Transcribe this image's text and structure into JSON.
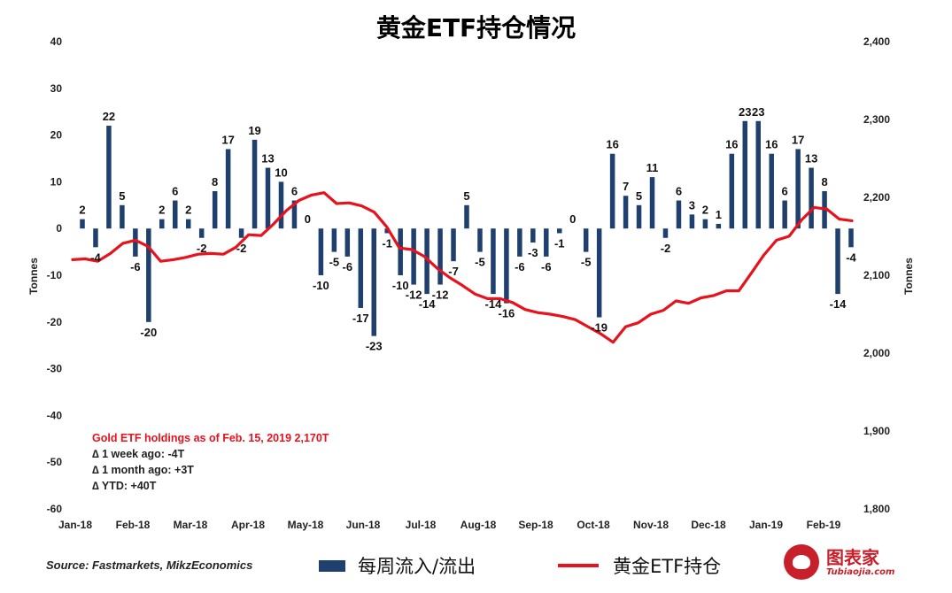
{
  "title": "黄金ETF持仓情况",
  "chart_data": {
    "type": "bar+line",
    "title": "黄金ETF持仓情况",
    "left_axis": {
      "label": "Tonnes",
      "ylim": [
        -60,
        40
      ],
      "ticks": [
        "40",
        "30",
        "20",
        "10",
        "0",
        "-10",
        "-20",
        "-30",
        "-40",
        "-50",
        "-60"
      ]
    },
    "right_axis": {
      "label": "Tonnes",
      "ylim": [
        1800,
        2400
      ],
      "ticks": [
        "2,400",
        "2,300",
        "2,200",
        "2,100",
        "2,000",
        "1,900",
        "1,800"
      ]
    },
    "x_tick_labels": [
      "Jan-18",
      "Feb-18",
      "Mar-18",
      "Apr-18",
      "May-18",
      "Jun-18",
      "Jul-18",
      "Aug-18",
      "Sep-18",
      "Oct-18",
      "Nov-18",
      "Dec-18",
      "Jan-19",
      "Feb-19"
    ],
    "series": [
      {
        "name": "每周流入/流出",
        "type": "bar",
        "axis": "left",
        "color": "#1f3f6e",
        "values": [
          2,
          -4,
          22,
          5,
          -6,
          -20,
          2,
          6,
          2,
          -2,
          8,
          17,
          -2,
          19,
          13,
          10,
          6,
          0,
          -10,
          -5,
          -6,
          -17,
          -23,
          -1,
          -10,
          -12,
          -14,
          -12,
          -7,
          5,
          -5,
          -14,
          -16,
          -6,
          -3,
          -6,
          -1,
          0,
          -5,
          -19,
          16,
          7,
          5,
          11,
          -2,
          6,
          3,
          2,
          1,
          16,
          23,
          23,
          16,
          6,
          17,
          13,
          8,
          -14,
          -4
        ],
        "labels": [
          "2",
          "-4",
          "22",
          "5",
          "-6",
          "-20",
          "2",
          "6",
          "2",
          "-2",
          "8",
          "17",
          "-2",
          "19",
          "13",
          "10",
          "6",
          "0",
          "-10",
          "-5",
          "-6",
          "-17",
          "-23",
          "-1",
          "-10",
          "-12",
          "-14",
          "-12",
          "-7",
          "5",
          "-5",
          "-14",
          "-16",
          "-6",
          "-3",
          "-6",
          "-1",
          "0",
          "-5",
          "-19",
          "16",
          "7",
          "5",
          "11",
          "-2",
          "6",
          "3",
          "2",
          "1",
          "16",
          "23",
          "23",
          "16",
          "6",
          "17",
          "13",
          "8",
          "-14",
          "-4"
        ]
      },
      {
        "name": "黄金ETF持仓",
        "type": "line",
        "axis": "right",
        "color": "#e8121c",
        "values": [
          2120,
          2121,
          2118,
          2128,
          2141,
          2145,
          2137,
          2118,
          2120,
          2123,
          2127,
          2128,
          2127,
          2136,
          2152,
          2151,
          2166,
          2183,
          2196,
          2203,
          2206,
          2192,
          2193,
          2189,
          2181,
          2162,
          2135,
          2133,
          2124,
          2109,
          2097,
          2087,
          2076,
          2070,
          2070,
          2065,
          2056,
          2052,
          2050,
          2047,
          2043,
          2034,
          2025,
          2014,
          2034,
          2039,
          2050,
          2055,
          2067,
          2064,
          2071,
          2074,
          2080,
          2080,
          2103,
          2126,
          2145,
          2150,
          2171,
          2187,
          2185,
          2172,
          2170
        ]
      }
    ],
    "annotation": {
      "headline": "Gold ETF holdings as of Feb. 15, 2019 2,170T",
      "lines": [
        "∆ 1 week ago: -4T",
        "∆ 1 month ago: +3T",
        "∆ YTD: +40T"
      ]
    },
    "grid": false,
    "legend_position": "bottom"
  },
  "source": "Source: Fastmarkets, MikzEconomics",
  "legend": {
    "bars": "每周流入/流出",
    "line": "黄金ETF持仓"
  },
  "logo": {
    "cn": "图表家",
    "en": "Tubiaojia.com"
  }
}
